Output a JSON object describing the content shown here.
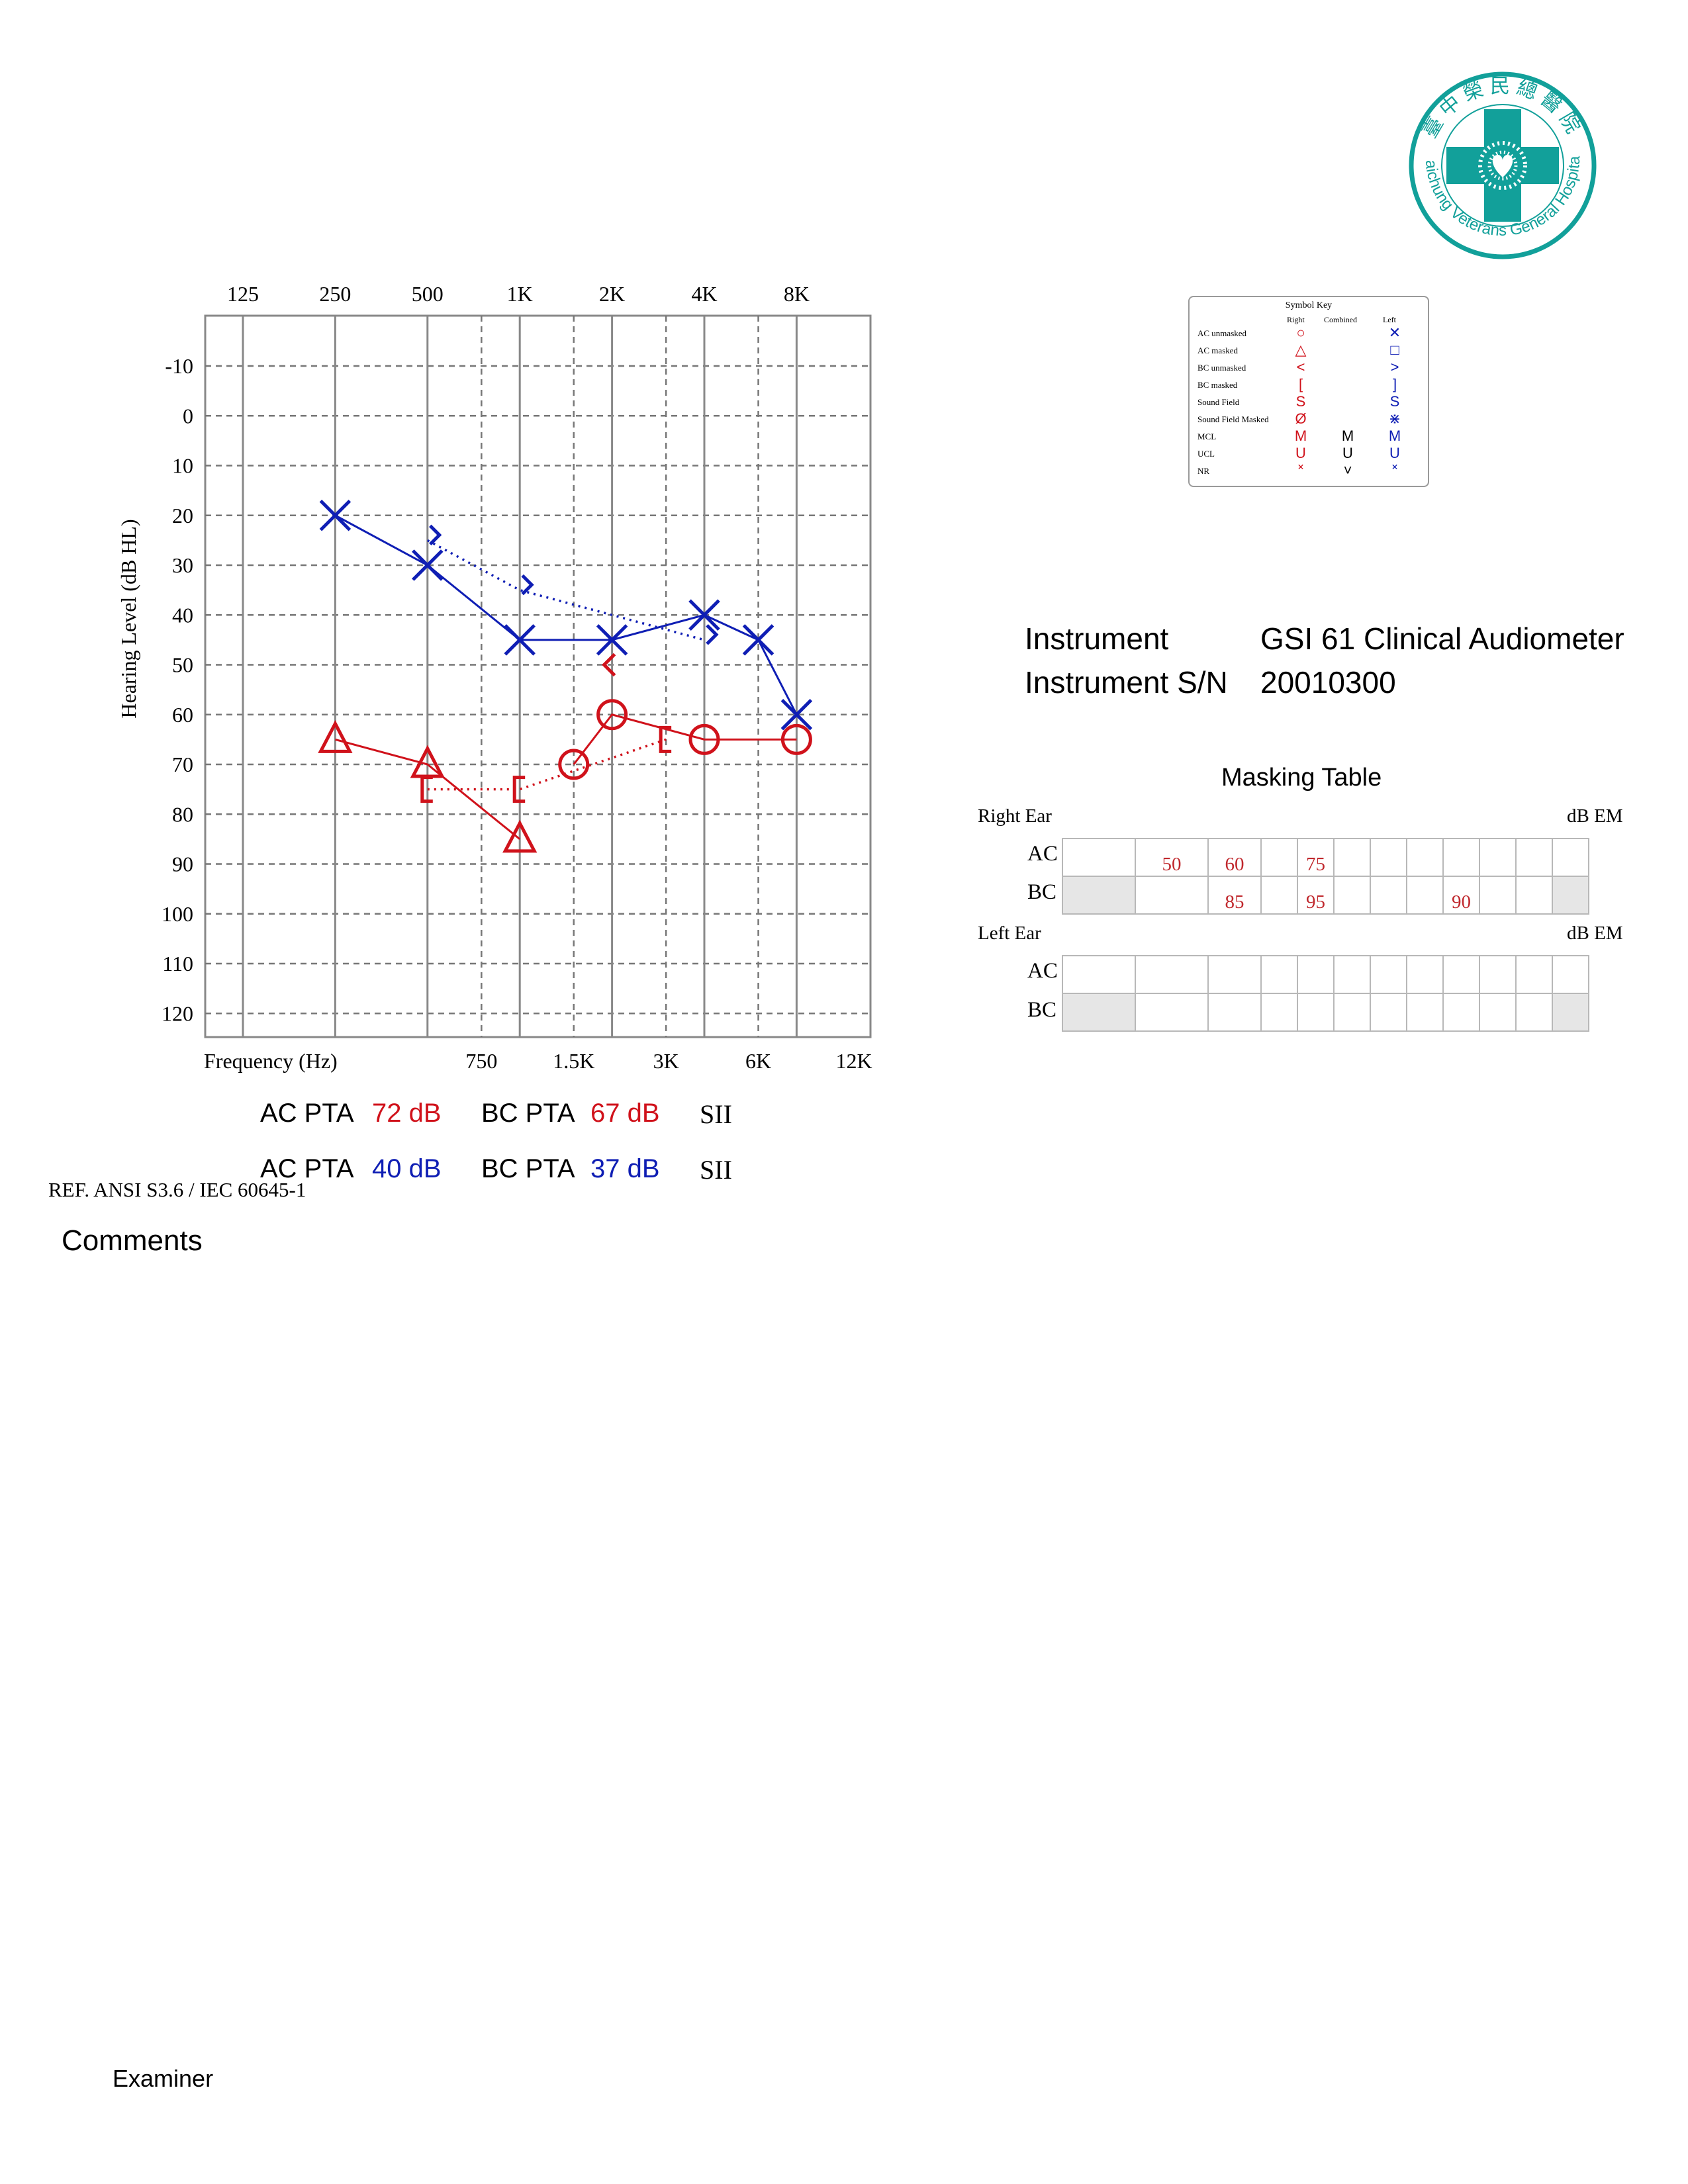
{
  "logo": {
    "chinese_text": "臺中榮民總醫院",
    "english_text": "Taichung Veterans General Hospital",
    "color": "#12a09a"
  },
  "chart_data": {
    "type": "scatter",
    "title": "",
    "xlabel": "Frequency (Hz)",
    "ylabel": "Hearing Level (dB HL)",
    "x_top_ticks": [
      "125",
      "250",
      "500",
      "1K",
      "2K",
      "4K",
      "8K"
    ],
    "x_bottom_ticks": [
      "750",
      "1.5K",
      "3K",
      "6K",
      "12K"
    ],
    "y_ticks": [
      -10,
      0,
      10,
      20,
      30,
      40,
      50,
      60,
      70,
      80,
      90,
      100,
      110,
      120
    ],
    "ylim": [
      -20,
      125
    ],
    "y_inverted": true,
    "x_scale": "log2",
    "grid": true,
    "series": [
      {
        "name": "AC unmasked",
        "ear": "left",
        "marker": "cross",
        "color": "#0f1eb4",
        "line": "solid",
        "x": [
          250,
          500,
          1000,
          2000,
          4000,
          6000,
          8000
        ],
        "y": [
          20,
          30,
          45,
          45,
          40,
          45,
          60
        ]
      },
      {
        "name": "BC unmasked",
        "ear": "left",
        "marker": "angle-right",
        "color": "#0f1eb4",
        "line": "dotted",
        "x": [
          500,
          1000,
          4000
        ],
        "y": [
          25,
          35,
          45
        ]
      },
      {
        "name": "AC masked",
        "ear": "right",
        "marker": "triangle",
        "color": "#d0121b",
        "line": "solid",
        "x": [
          250,
          500,
          1000
        ],
        "y": [
          65,
          70,
          85
        ]
      },
      {
        "name": "AC unmasked",
        "ear": "right",
        "marker": "circle",
        "color": "#d0121b",
        "line": "solid",
        "x": [
          1500,
          2000,
          4000,
          8000
        ],
        "y": [
          70,
          60,
          65,
          65
        ]
      },
      {
        "name": "BC masked",
        "ear": "right",
        "marker": "bracket-left",
        "color": "#d0121b",
        "line": "dotted",
        "x": [
          500,
          1000,
          3000
        ],
        "y": [
          75,
          75,
          65
        ]
      },
      {
        "name": "BC unmasked",
        "ear": "right",
        "marker": "angle-left",
        "color": "#d0121b",
        "line": "dotted",
        "x": [
          2000
        ],
        "y": [
          50
        ]
      }
    ]
  },
  "symbol_key": {
    "title": "Symbol Key",
    "headers": [
      "Right",
      "Combined",
      "Left"
    ],
    "rows": [
      {
        "label": "AC unmasked",
        "right": "○",
        "combined": "",
        "left": "✕"
      },
      {
        "label": "AC masked",
        "right": "△",
        "combined": "",
        "left": "□"
      },
      {
        "label": "BC unmasked",
        "right": "<",
        "combined": "",
        "left": ">"
      },
      {
        "label": "BC masked",
        "right": "[",
        "combined": "",
        "left": "]"
      },
      {
        "label": "Sound Field",
        "right": "S",
        "combined": "",
        "left": "S"
      },
      {
        "label": "Sound Field Masked",
        "right": "Ø",
        "combined": "",
        "left": "⋇"
      },
      {
        "label": "MCL",
        "right": "M",
        "combined": "M",
        "left": "M"
      },
      {
        "label": "UCL",
        "right": "U",
        "combined": "U",
        "left": "U"
      },
      {
        "label": "NR",
        "right": "˟",
        "combined": "˅",
        "left": "˟"
      }
    ]
  },
  "instrument": {
    "label": "Instrument",
    "value": "GSI 61 Clinical Audiometer",
    "sn_label": "Instrument S/N",
    "sn_value": "20010300"
  },
  "masking": {
    "title": "Masking Table",
    "right_ear_label": "Right Ear",
    "left_ear_label": "Left Ear",
    "unit": "dB EM",
    "row_labels": [
      "AC",
      "BC"
    ],
    "right_ac": [
      "",
      "50",
      "60",
      "",
      "75",
      "",
      "",
      "",
      "",
      "",
      "",
      ""
    ],
    "right_bc": [
      "",
      "",
      "85",
      "",
      "95",
      "",
      "",
      "",
      "90",
      "",
      "",
      ""
    ],
    "left_ac": [
      "",
      "",
      "",
      "",
      "",
      "",
      "",
      "",
      "",
      "",
      "",
      ""
    ],
    "left_bc": [
      "",
      "",
      "",
      "",
      "",
      "",
      "",
      "",
      "",
      "",
      "",
      ""
    ]
  },
  "pta": {
    "right": {
      "ac_label": "AC PTA",
      "ac_value": "72 dB",
      "bc_label": "BC PTA",
      "bc_value": "67 dB",
      "sii_label": "SII"
    },
    "left": {
      "ac_label": "AC PTA",
      "ac_value": "40 dB",
      "bc_label": "BC PTA",
      "bc_value": "37 dB",
      "sii_label": "SII"
    }
  },
  "reference": "REF. ANSI S3.6 / IEC 60645-1",
  "comments_label": "Comments",
  "examiner_label": "Examiner"
}
